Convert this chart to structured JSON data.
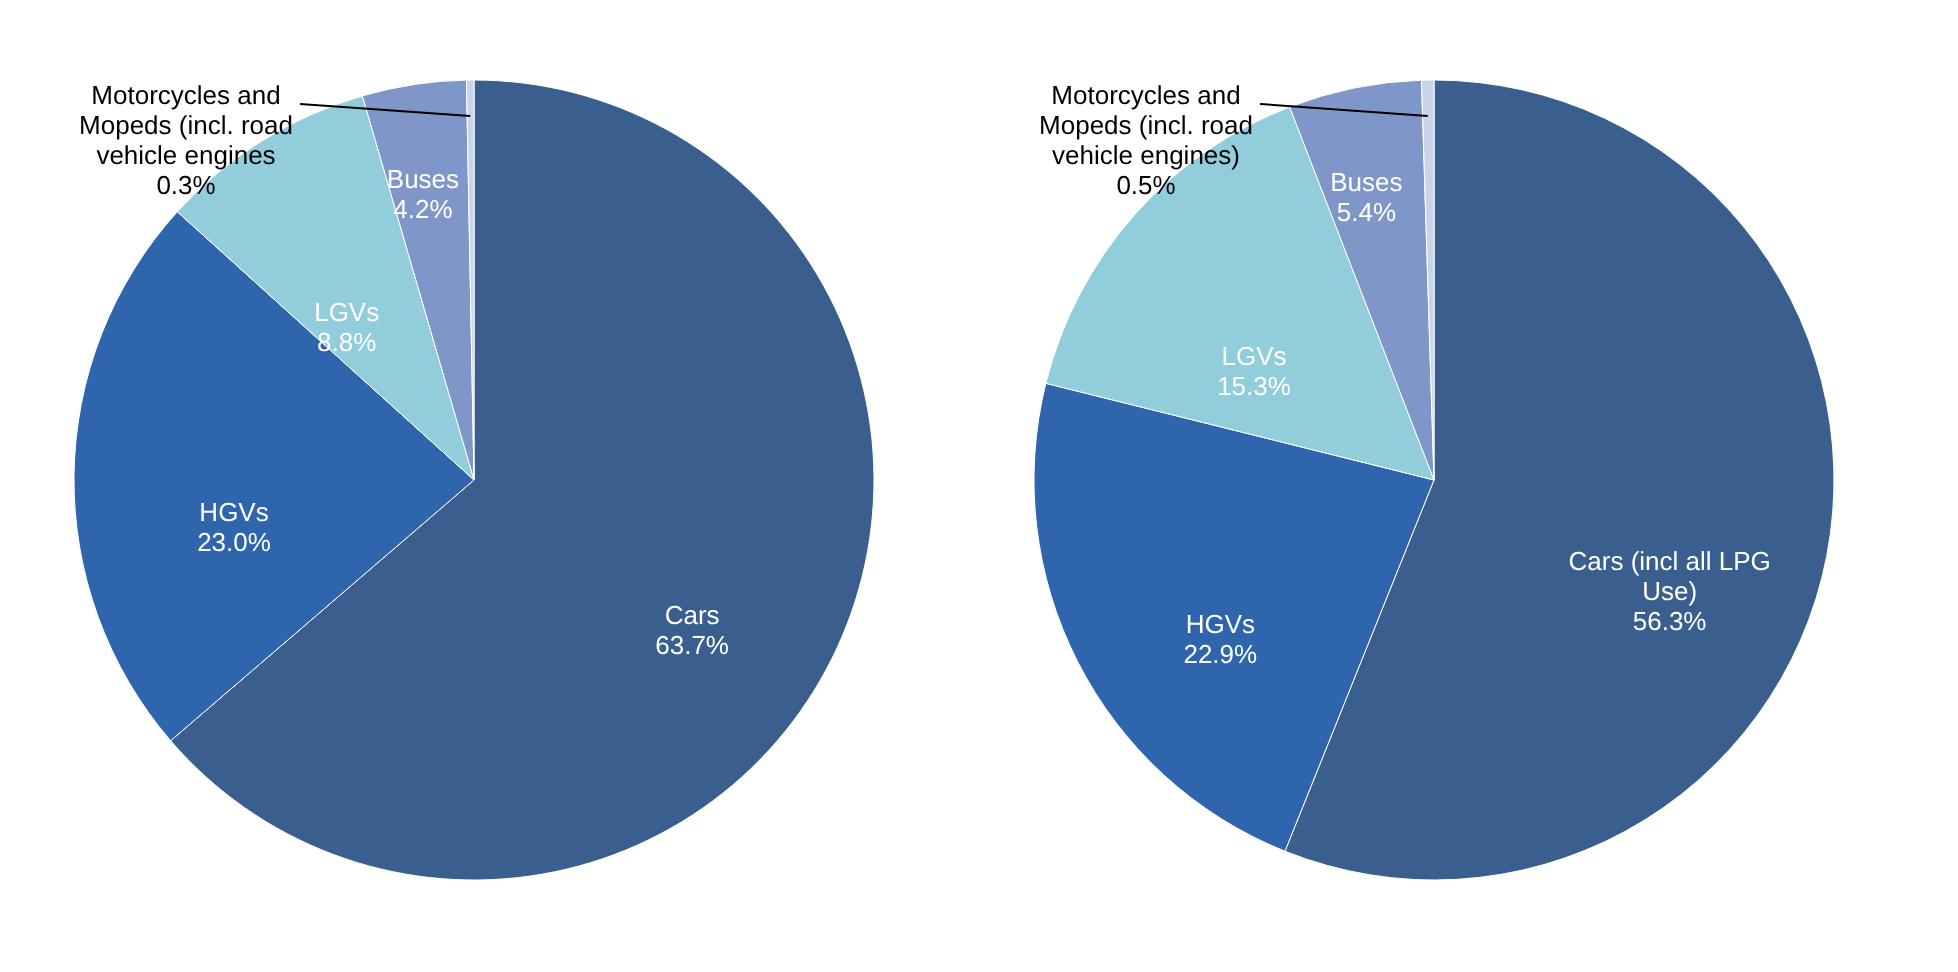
{
  "chart_data": [
    {
      "type": "pie",
      "categories": [
        "Cars",
        "HGVs",
        "LGVs",
        "Buses",
        "Motorcycles and Mopeds (incl. road vehicle engines"
      ],
      "values": [
        63.7,
        23.0,
        8.8,
        4.2,
        0.3
      ],
      "value_labels": [
        "63.7%",
        "23.0%",
        "8.8%",
        "4.2%",
        "0.3%"
      ],
      "colors": [
        "#3a5f8f",
        "#2f65ad",
        "#92cddc",
        "#7f96c8",
        "#c9d4ea"
      ],
      "legend": false
    },
    {
      "type": "pie",
      "categories": [
        "Cars (incl all LPG Use)",
        "HGVs",
        "LGVs",
        "Buses",
        "Motorcycles and Mopeds (incl. road vehicle engines)"
      ],
      "values": [
        56.3,
        22.9,
        15.3,
        5.4,
        0.5
      ],
      "value_labels": [
        "56.3%",
        "22.9%",
        "15.3%",
        "5.4%",
        "0.5%"
      ],
      "colors": [
        "#3a5f8f",
        "#2f65ad",
        "#92cddc",
        "#7f96c8",
        "#c9d4ea"
      ],
      "legend": false
    }
  ]
}
